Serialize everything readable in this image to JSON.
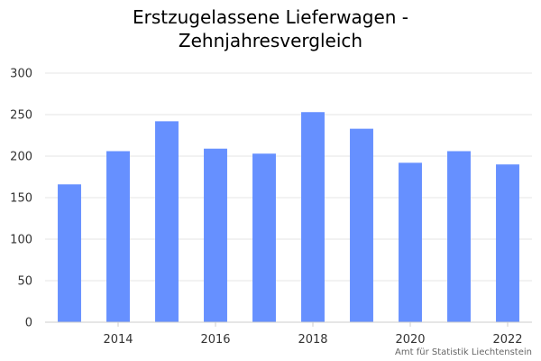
{
  "title_lines": [
    "Erstzugelassene Lieferwagen -",
    "Zehnjahresvergleich"
  ],
  "credit": "Amt für Statistik Liechtenstein",
  "colors": {
    "bar": "#6690ff",
    "grid": "#e6e6e6",
    "axis": "#cccccc"
  },
  "chart_data": {
    "type": "bar",
    "title": "Erstzugelassene Lieferwagen - Zehnjahresvergleich",
    "categories": [
      "2013",
      "2014",
      "2015",
      "2016",
      "2017",
      "2018",
      "2019",
      "2020",
      "2021",
      "2022"
    ],
    "values": [
      166,
      206,
      242,
      209,
      203,
      253,
      233,
      192,
      206,
      190
    ],
    "x_ticks": [
      "2014",
      "2016",
      "2018",
      "2020",
      "2022"
    ],
    "y_ticks": [
      0,
      50,
      100,
      150,
      200,
      250,
      300
    ],
    "ylim": [
      0,
      300
    ],
    "xlabel": "",
    "ylabel": "",
    "grid": true,
    "legend": "none"
  }
}
